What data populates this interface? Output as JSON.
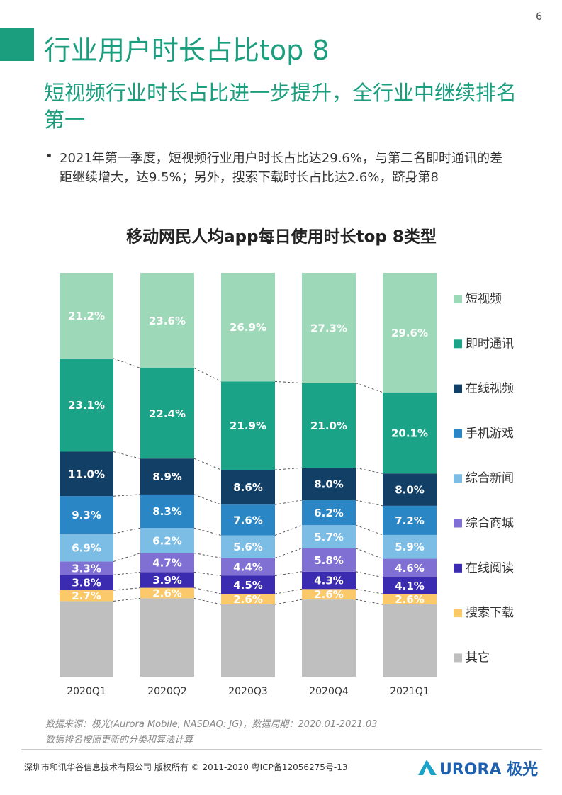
{
  "page_number": "6",
  "header": {
    "title": "行业用户时长占比top 8",
    "subtitle": "短视频行业时长占比进一步提升，全行业中继续排名第一"
  },
  "bullet": "2021年第一季度，短视频行业用户时长占比达29.6%，与第二名即时通讯的差距继续增大，达9.5%；另外，搜索下载时长占比达2.6%，跻身第8",
  "chart_data": {
    "type": "stacked_bar",
    "title": "移动网民人均app每日使用时长top 8类型",
    "categories": [
      "2020Q1",
      "2020Q2",
      "2020Q3",
      "2020Q4",
      "2021Q1"
    ],
    "ylim": [
      0,
      100
    ],
    "series": [
      {
        "name": "短视频",
        "color": "#9dd9b8",
        "values": [
          21.2,
          23.6,
          26.9,
          27.3,
          29.6
        ],
        "value_labels": [
          "21.2%",
          "23.6%",
          "26.9%",
          "27.3%",
          "29.6%"
        ]
      },
      {
        "name": "即时通讯",
        "color": "#1aa386",
        "values": [
          23.1,
          22.4,
          21.9,
          21.0,
          20.1
        ],
        "value_labels": [
          "23.1%",
          "22.4%",
          "21.9%",
          "21.0%",
          "20.1%"
        ]
      },
      {
        "name": "在线视频",
        "color": "#123f66",
        "values": [
          11.0,
          8.9,
          8.6,
          8.0,
          8.0
        ],
        "value_labels": [
          "11.0%",
          "8.9%",
          "8.6%",
          "8.0%",
          "8.0%"
        ]
      },
      {
        "name": "手机游戏",
        "color": "#2b86c5",
        "values": [
          9.3,
          8.3,
          7.6,
          6.2,
          7.2
        ],
        "value_labels": [
          "9.3%",
          "8.3%",
          "7.6%",
          "6.2%",
          "7.2%"
        ]
      },
      {
        "name": "综合新闻",
        "color": "#7cbde6",
        "values": [
          6.9,
          6.2,
          5.6,
          5.7,
          5.9
        ],
        "value_labels": [
          "6.9%",
          "6.2%",
          "5.6%",
          "5.7%",
          "5.9%"
        ]
      },
      {
        "name": "综合商城",
        "color": "#8170d3",
        "values": [
          3.3,
          4.7,
          4.4,
          5.8,
          4.6
        ],
        "value_labels": [
          "3.3%",
          "4.7%",
          "4.4%",
          "5.8%",
          "4.6%"
        ]
      },
      {
        "name": "在线阅读",
        "color": "#3a2bb0",
        "values": [
          3.8,
          3.9,
          4.5,
          4.3,
          4.1
        ],
        "value_labels": [
          "3.8%",
          "3.9%",
          "4.5%",
          "4.3%",
          "4.1%"
        ]
      },
      {
        "name": "搜索下载",
        "color": "#fbc86a",
        "values": [
          2.7,
          2.6,
          2.6,
          2.6,
          2.6
        ],
        "value_labels": [
          "2.7%",
          "2.6%",
          "2.6%",
          "2.6%",
          "2.6%"
        ]
      },
      {
        "name": "其它",
        "color": "#bfbfbf",
        "values": [
          18.7,
          19.4,
          17.9,
          19.1,
          17.9
        ]
      }
    ]
  },
  "source": [
    "数据来源：极光(Aurora Mobile, NASDAQ: JG)，数据周期：2020.01-2021.03",
    "数据排名按照更新的分类和算法计算"
  ],
  "footer": {
    "copyright": "深圳市和讯华谷信息技术有限公司 版权所有 © 2011-2020 粤ICP备12056275号-13",
    "logo": "URORA 极光"
  }
}
